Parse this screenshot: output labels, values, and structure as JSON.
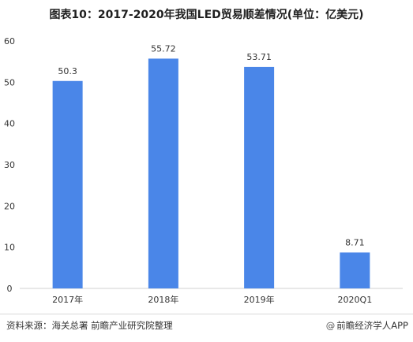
{
  "title": "图表10：2017-2020年我国LED贸易顺差情况(单位：亿美元)",
  "chart_data": {
    "type": "bar",
    "categories": [
      "2017年",
      "2018年",
      "2019年",
      "2020Q1"
    ],
    "values": [
      50.3,
      55.72,
      53.71,
      8.71
    ],
    "value_labels": [
      "50.3",
      "55.72",
      "53.71",
      "8.71"
    ],
    "ylim": [
      0,
      60
    ],
    "yticks": [
      0,
      10,
      20,
      30,
      40,
      50,
      60
    ],
    "bar_color": "#4a86e8",
    "grid": false,
    "legend": "none"
  },
  "footer": {
    "source": "资料来源：海关总署 前瞻产业研究院整理",
    "brand_at": "@",
    "brand": "前瞻经济学人APP"
  }
}
